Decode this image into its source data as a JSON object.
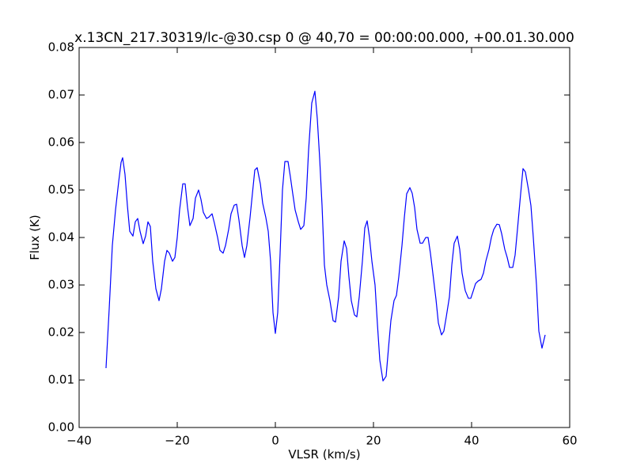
{
  "chart_data": {
    "type": "line",
    "title": "x.13CN_217.30319/lc-@30.csp 0 @ 40,70 = 00:00:00.000, +00.01.30.000",
    "xlabel": "VLSR (km/s)",
    "ylabel": "Flux (K)",
    "color": "#0000ff",
    "xlim": [
      -40,
      60
    ],
    "ylim": [
      0,
      0.08
    ],
    "xticks": [
      {
        "value": -40,
        "label": "−40"
      },
      {
        "value": -20,
        "label": "−20"
      },
      0,
      20,
      40,
      60
    ],
    "yticks": [
      {
        "value": 0,
        "label": "0.00"
      },
      {
        "value": 0.01,
        "label": "0.01"
      },
      {
        "value": 0.02,
        "label": "0.02"
      },
      {
        "value": 0.03,
        "label": "0.03"
      },
      {
        "value": 0.04,
        "label": "0.04"
      },
      {
        "value": 0.05,
        "label": "0.05"
      },
      {
        "value": 0.06,
        "label": "0.06"
      },
      {
        "value": 0.07,
        "label": "0.07"
      },
      {
        "value": 0.08,
        "label": "0.08"
      }
    ],
    "x": [
      -34.52,
      -33.87,
      -33.23,
      -32.58,
      -31.94,
      -31.45,
      -31.13,
      -30.65,
      -30.16,
      -29.68,
      -29.03,
      -28.55,
      -28.06,
      -27.58,
      -26.94,
      -26.45,
      -25.97,
      -25.48,
      -25.0,
      -24.35,
      -23.71,
      -23.23,
      -22.58,
      -22.1,
      -21.61,
      -20.97,
      -20.48,
      -20.0,
      -19.52,
      -18.87,
      -18.39,
      -17.9,
      -17.42,
      -16.77,
      -16.29,
      -15.65,
      -15.16,
      -14.68,
      -14.03,
      -13.55,
      -12.9,
      -12.42,
      -11.77,
      -11.29,
      -10.65,
      -10.16,
      -9.52,
      -9.03,
      -8.39,
      -7.9,
      -7.42,
      -6.77,
      -6.29,
      -5.81,
      -5.16,
      -4.68,
      -4.19,
      -3.71,
      -3.06,
      -2.58,
      -1.94,
      -1.45,
      -0.97,
      -0.48,
      0.0,
      0.48,
      0.97,
      1.45,
      1.94,
      2.58,
      3.06,
      3.55,
      4.03,
      4.68,
      5.16,
      5.81,
      6.29,
      6.77,
      7.42,
      8.06,
      8.55,
      9.03,
      9.52,
      10.0,
      10.48,
      11.13,
      11.77,
      12.26,
      12.9,
      13.39,
      14.03,
      14.52,
      15.0,
      15.48,
      16.13,
      16.61,
      17.1,
      17.74,
      18.23,
      18.71,
      19.19,
      19.68,
      20.32,
      20.81,
      21.29,
      21.94,
      22.58,
      23.06,
      23.55,
      24.19,
      24.68,
      25.16,
      25.81,
      26.29,
      26.77,
      27.42,
      27.9,
      28.39,
      28.87,
      29.52,
      30.0,
      30.65,
      31.13,
      31.61,
      32.1,
      32.74,
      33.23,
      33.87,
      34.35,
      34.84,
      35.48,
      35.97,
      36.45,
      37.1,
      37.58,
      38.06,
      38.71,
      39.35,
      39.84,
      40.32,
      40.81,
      41.29,
      41.94,
      42.42,
      42.9,
      43.55,
      44.03,
      44.52,
      45.16,
      45.65,
      46.13,
      46.77,
      47.26,
      47.74,
      48.39,
      48.87,
      49.35,
      50.0,
      50.48,
      50.97,
      51.61,
      52.1,
      52.58,
      53.23,
      53.71,
      54.35,
      55.0
    ],
    "values": [
      0.0125,
      0.025,
      0.0383,
      0.0458,
      0.0517,
      0.0558,
      0.0568,
      0.0533,
      0.0467,
      0.0413,
      0.0403,
      0.0433,
      0.044,
      0.0413,
      0.0387,
      0.0403,
      0.0433,
      0.0423,
      0.035,
      0.0292,
      0.0267,
      0.0292,
      0.035,
      0.0373,
      0.0367,
      0.035,
      0.0358,
      0.04,
      0.0458,
      0.0513,
      0.0513,
      0.0463,
      0.0425,
      0.044,
      0.0483,
      0.05,
      0.048,
      0.0453,
      0.044,
      0.0443,
      0.045,
      0.043,
      0.04,
      0.0373,
      0.0367,
      0.0383,
      0.0417,
      0.045,
      0.0468,
      0.047,
      0.0437,
      0.0383,
      0.0358,
      0.0383,
      0.0442,
      0.0492,
      0.0542,
      0.0547,
      0.0513,
      0.0472,
      0.0442,
      0.0413,
      0.035,
      0.0242,
      0.0198,
      0.0242,
      0.0367,
      0.05,
      0.056,
      0.056,
      0.0528,
      0.0492,
      0.0458,
      0.0433,
      0.0417,
      0.0425,
      0.0483,
      0.0583,
      0.0683,
      0.0708,
      0.065,
      0.0567,
      0.0467,
      0.0342,
      0.03,
      0.0267,
      0.0225,
      0.0222,
      0.0275,
      0.035,
      0.0393,
      0.0377,
      0.0317,
      0.0267,
      0.0237,
      0.0233,
      0.0275,
      0.035,
      0.042,
      0.0435,
      0.04,
      0.035,
      0.03,
      0.0217,
      0.0142,
      0.0098,
      0.0108,
      0.0167,
      0.0225,
      0.0267,
      0.0278,
      0.0317,
      0.0383,
      0.0442,
      0.0492,
      0.0505,
      0.0493,
      0.0463,
      0.0417,
      0.0388,
      0.0388,
      0.04,
      0.04,
      0.0367,
      0.0325,
      0.027,
      0.022,
      0.0195,
      0.0203,
      0.0233,
      0.0275,
      0.0342,
      0.0388,
      0.0403,
      0.0375,
      0.0325,
      0.0288,
      0.0272,
      0.0272,
      0.0287,
      0.0303,
      0.0308,
      0.0312,
      0.0325,
      0.035,
      0.0375,
      0.04,
      0.0417,
      0.0428,
      0.0427,
      0.0408,
      0.0375,
      0.0358,
      0.0337,
      0.0337,
      0.0363,
      0.0417,
      0.0492,
      0.0545,
      0.0538,
      0.05,
      0.0467,
      0.04,
      0.03,
      0.0203,
      0.0167,
      0.0195
    ]
  }
}
